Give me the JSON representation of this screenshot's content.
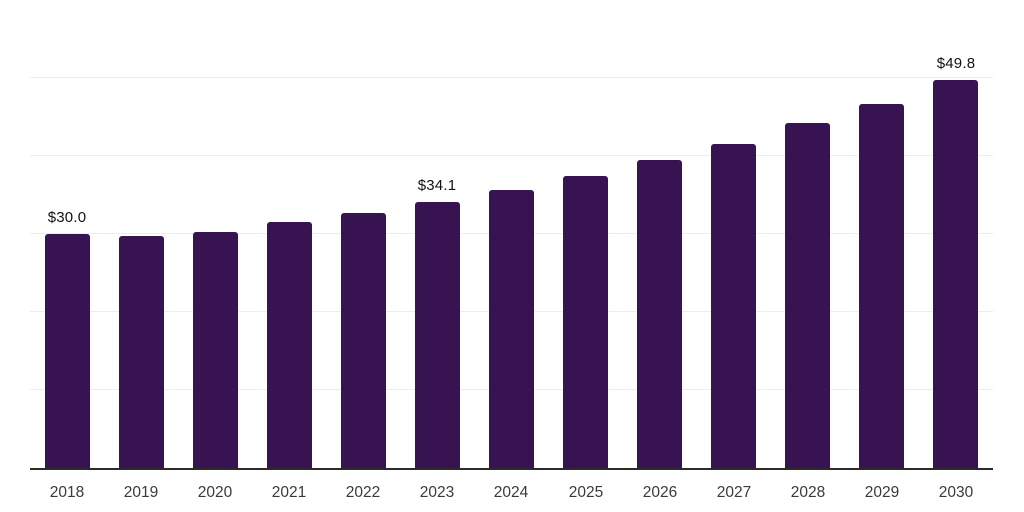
{
  "chart_data": {
    "type": "bar",
    "title": "",
    "xlabel": "",
    "ylabel": "",
    "categories": [
      "2018",
      "2019",
      "2020",
      "2021",
      "2022",
      "2023",
      "2024",
      "2025",
      "2026",
      "2027",
      "2028",
      "2029",
      "2030"
    ],
    "values": [
      30.0,
      29.7,
      30.3,
      31.6,
      32.7,
      34.1,
      35.7,
      37.4,
      39.5,
      41.6,
      44.2,
      46.7,
      49.8
    ],
    "value_labels": [
      "$30.0",
      null,
      null,
      null,
      null,
      "$34.1",
      null,
      null,
      null,
      null,
      null,
      null,
      "$49.8"
    ],
    "ylim": [
      0,
      60
    ],
    "grid_step": 10,
    "grid_on": true,
    "legend": "none",
    "colors": {
      "bar": "#371351",
      "grid": "#ededed",
      "axis_line": "#2b2b2b",
      "tick_label": "#3a3a3a",
      "value_label": "#111111",
      "background": "#ffffff"
    }
  }
}
